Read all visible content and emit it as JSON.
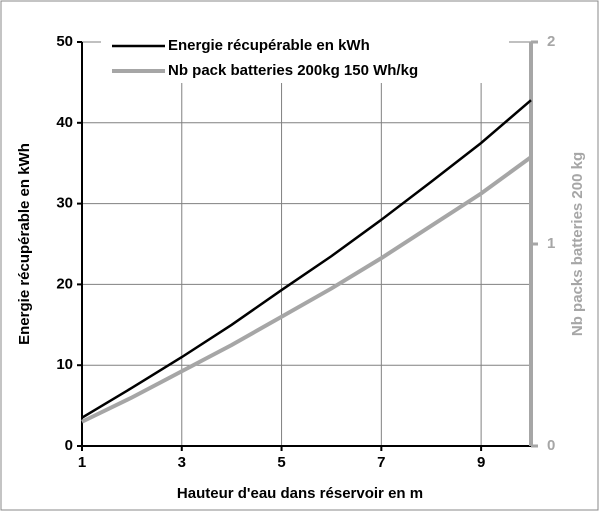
{
  "chart_data": {
    "type": "line",
    "x_label": "Hauteur d'eau dans réservoir en m",
    "y_label": "Energie récupérable en kWh",
    "y2_label": "Nb packs batteries 200 kg",
    "x": [
      1,
      2,
      3,
      4,
      5,
      6,
      7,
      8,
      9,
      10
    ],
    "series": [
      {
        "name": "Energie récupérable en kWh",
        "color": "#000000",
        "values": [
          3.5,
          7.2,
          11,
          15,
          19.3,
          23.5,
          28,
          32.7,
          37.5,
          42.8
        ]
      },
      {
        "name": "Nb pack batteries 200kg 150 Wh/kg",
        "color": "#a6a6a6",
        "axis": "y2",
        "values": [
          0.12,
          0.24,
          0.37,
          0.5,
          0.64,
          0.78,
          0.93,
          1.09,
          1.25,
          1.43
        ]
      }
    ],
    "xlim": [
      1,
      10
    ],
    "xticks": [
      1,
      3,
      5,
      7,
      9
    ],
    "ylim": [
      0,
      50
    ],
    "yticks": [
      0,
      10,
      20,
      30,
      40,
      50
    ],
    "y2lim": [
      0,
      2
    ],
    "y2ticks": [
      0,
      1,
      2
    ],
    "grid": true,
    "legend": "top"
  }
}
